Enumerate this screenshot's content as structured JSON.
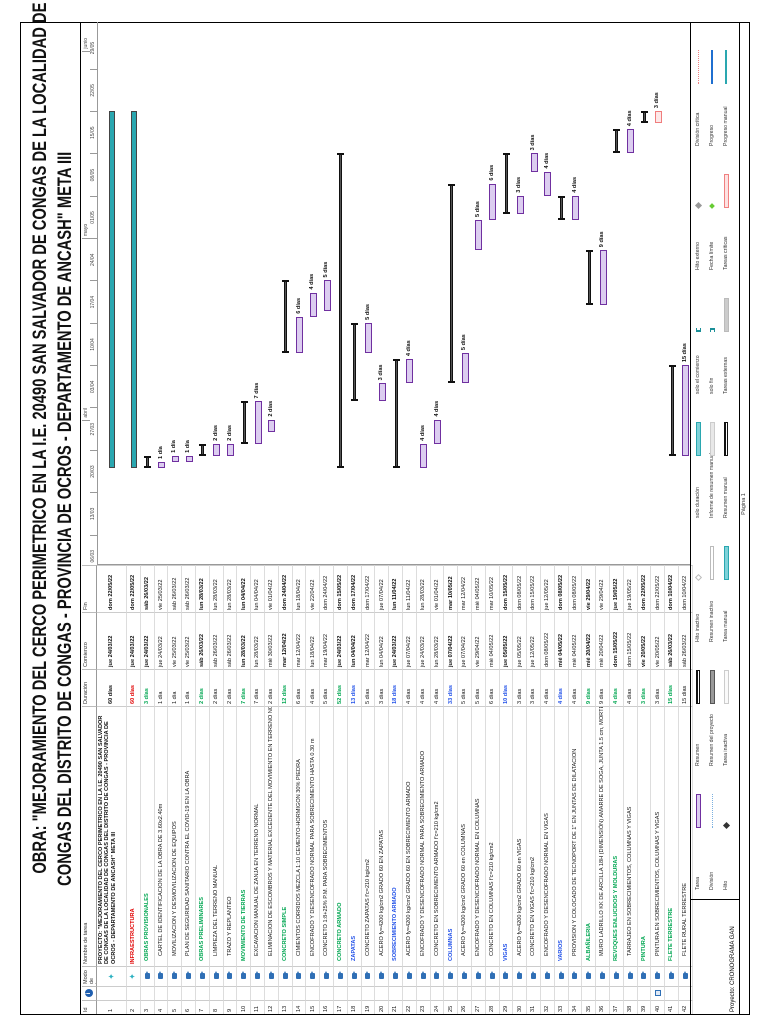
{
  "title": {
    "line1": "OBRA: \"MEJORAMIENTO DEL CERCO PERIMETRICO EN LA I.E. 20490 SAN SALVADOR DE CONGAS DE LA LOCALIDAD DE",
    "line2": "CONGAS DEL DISTRITO DE CONGAS - PROVINCIA DE OCROS - DEPARTAMENTO DE ANCASH\" META III"
  },
  "columns": {
    "id": "Id",
    "indicator": "i",
    "mode": "Modo de tarea",
    "name": "Nombre de tarea",
    "duration": "Duración",
    "start": "Comienzo",
    "end": "Fin"
  },
  "timescale": {
    "months": [
      {
        "label": "abril",
        "date": "01/04/22"
      },
      {
        "label": "mayo",
        "date": "01/05/22"
      },
      {
        "label": "junio",
        "date": "01/06/22"
      }
    ],
    "weeks": [
      "06/03",
      "13/03",
      "20/03",
      "27/03",
      "03/04",
      "10/04",
      "17/04",
      "24/04",
      "01/05",
      "08/05",
      "15/05",
      "22/05",
      "29/05"
    ]
  },
  "colors": {
    "summary_green": "#00a651",
    "summary_blue": "#1f4fe8",
    "summary_red": "#e00000",
    "task_bar": "#7030a0",
    "project_bar": "#2aa7b0"
  },
  "tasks": [
    {
      "id": "1",
      "mode": "manual",
      "kind": "project",
      "bold": true,
      "name": "PROYECTO: \"MEJORAMIENTO DEL CERCO PERIMETRICO EN LA I.E. 20490 SAN SALVADOR DE CONGAS DE LA LOCALIDAD DE CONGAS DEL DISTRITO DE CONGAS - PROVINCIA DE OCROS - DEPARTAMENTO DE ANCASH\" META III",
      "duration": "60 días",
      "start": "jue 24/03/22",
      "end": "dom 22/05/22"
    },
    {
      "id": "2",
      "mode": "manual",
      "kind": "project",
      "color": "#e00000",
      "name": "INFRAESTRUCTURA",
      "duration": "60 días",
      "start": "jue 24/03/22",
      "end": "dom 22/05/22"
    },
    {
      "id": "3",
      "mode": "auto",
      "kind": "summary",
      "color": "#00a651",
      "name": "OBRAS PROVISIONALES",
      "duration": "3 días",
      "start": "jue 24/03/22",
      "end": "sáb 26/03/22"
    },
    {
      "id": "4",
      "mode": "auto",
      "kind": "task",
      "name": "CARTEL DE IDENTIFICACION DE LA OBRA DE 3.60x2.40m",
      "duration": "1 día",
      "start": "jue 24/03/22",
      "end": "vie 25/03/22"
    },
    {
      "id": "5",
      "mode": "auto",
      "kind": "task",
      "name": "MOVILIZACION Y DESMOVILIZACION DE EQUIPOS",
      "duration": "1 día",
      "start": "vie 25/03/22",
      "end": "sáb 26/03/22"
    },
    {
      "id": "6",
      "mode": "auto",
      "kind": "task",
      "name": "PLAN DE SEGURIDAD SANITARIO CONTRA EL COVID-19 EN LA OBRA",
      "duration": "1 día",
      "start": "vie 25/03/22",
      "end": "sáb 26/03/22"
    },
    {
      "id": "7",
      "mode": "auto",
      "kind": "summary",
      "color": "#00a651",
      "name": "OBRAS PRELIMINARES",
      "duration": "2 días",
      "start": "sáb 26/03/22",
      "end": "lun 28/03/22"
    },
    {
      "id": "8",
      "mode": "auto",
      "kind": "task",
      "name": "LIMPIEZA DEL TERRENO MANUAL",
      "duration": "2 días",
      "start": "sáb 26/03/22",
      "end": "lun 28/03/22"
    },
    {
      "id": "9",
      "mode": "auto",
      "kind": "task",
      "name": "TRAZO Y REPLANTEO",
      "duration": "2 días",
      "start": "sáb 26/03/22",
      "end": "lun 28/03/22"
    },
    {
      "id": "10",
      "mode": "auto",
      "kind": "summary",
      "color": "#00a651",
      "name": "MOVIMIENTO DE TIERRAS",
      "duration": "7 días",
      "start": "lun 28/03/22",
      "end": "lun 04/04/22"
    },
    {
      "id": "11",
      "mode": "auto",
      "kind": "task",
      "name": "EXCAVACION MANUAL DE ZANJA EN TERRENO NORMAL",
      "duration": "7 días",
      "start": "lun 28/03/22",
      "end": "lun 04/04/22"
    },
    {
      "id": "12",
      "mode": "auto",
      "kind": "task",
      "name": "ELIMINACION DE ESCOMBROS Y MATERIAL EXCEDENTE DEL MOVIMIENTO EN TERRENO NORMAL",
      "duration": "2 días",
      "start": "mié 30/03/22",
      "end": "vie 01/04/22"
    },
    {
      "id": "13",
      "mode": "auto",
      "kind": "summary",
      "color": "#00a651",
      "name": "CONCRETO SIMPLE",
      "duration": "12 días",
      "start": "mar 12/04/22",
      "end": "dom 24/04/22"
    },
    {
      "id": "14",
      "mode": "auto",
      "kind": "task",
      "name": "CIMIENTOS CORRIDOS MEZCLA 1:10 CEMENTO-HORMIGON 30% PIEDRA",
      "duration": "6 días",
      "start": "mar 12/04/22",
      "end": "lun 18/04/22"
    },
    {
      "id": "15",
      "mode": "auto",
      "kind": "task",
      "name": "ENCOFRADO Y DESENCOFRADO NORMAL PARA SOBRECIMIENTO HASTA 0.30 m",
      "duration": "4 días",
      "start": "lun 18/04/22",
      "end": "vie 22/04/22"
    },
    {
      "id": "16",
      "mode": "auto",
      "kind": "task",
      "name": "CONCRETO 1:8+25% P.M. PARA SOBRECIMIENTOS",
      "duration": "5 días",
      "start": "mar 19/04/22",
      "end": "dom 24/04/22"
    },
    {
      "id": "17",
      "mode": "auto",
      "kind": "summary",
      "color": "#00a651",
      "name": "CONCRETO ARMADO",
      "duration": "52 días",
      "start": "jue 24/03/22",
      "end": "dom 15/05/22"
    },
    {
      "id": "18",
      "mode": "auto",
      "kind": "summary",
      "color": "#1f4fe8",
      "name": "ZAPATAS",
      "duration": "13 días",
      "start": "lun 04/04/22",
      "end": "dom 17/04/22"
    },
    {
      "id": "19",
      "mode": "auto",
      "kind": "task",
      "name": "CONCRETO ZAPATAS f'c=210 kg/cm2",
      "duration": "5 días",
      "start": "mar 12/04/22",
      "end": "dom 17/04/22"
    },
    {
      "id": "20",
      "mode": "auto",
      "kind": "task",
      "name": "ACERO fy=4200 kg/cm2 GRADO 60 EN ZAPATAS",
      "duration": "3 días",
      "start": "lun 04/04/22",
      "end": "jue 07/04/22"
    },
    {
      "id": "21",
      "mode": "auto",
      "kind": "summary",
      "color": "#1f4fe8",
      "name": "SOBRECIMIENTO ARMADO",
      "duration": "18 días",
      "start": "jue 24/03/22",
      "end": "lun 11/04/22"
    },
    {
      "id": "22",
      "mode": "auto",
      "kind": "task",
      "name": "ACERO fy=4200 kg/cm2 GRADO 60 EN SOBRECIMIENTO ARMADO",
      "duration": "4 días",
      "start": "jue 07/04/22",
      "end": "lun 11/04/22"
    },
    {
      "id": "23",
      "mode": "auto",
      "kind": "task",
      "name": "ENCOFRADO Y DESENCOFRADO NORMAL PARA SOBRECIMIENTO ARMADO",
      "duration": "4 días",
      "start": "jue 24/03/22",
      "end": "lun 28/03/22"
    },
    {
      "id": "24",
      "mode": "auto",
      "kind": "task",
      "name": "CONCRETO EN SOBRECIMIENTO ARMADO f'c=210 kg/cm2",
      "duration": "4 días",
      "start": "lun 28/03/22",
      "end": "vie 01/04/22"
    },
    {
      "id": "25",
      "mode": "auto",
      "kind": "summary",
      "color": "#1f4fe8",
      "name": "COLUMNAS",
      "duration": "33 días",
      "start": "jue 07/04/22",
      "end": "mar 10/05/22"
    },
    {
      "id": "26",
      "mode": "auto",
      "kind": "task",
      "name": "ACERO fy=4200 kg/cm2 GRADO 60 en COLUMNAS",
      "duration": "5 días",
      "start": "jue 07/04/22",
      "end": "mar 12/04/22"
    },
    {
      "id": "27",
      "mode": "auto",
      "kind": "task",
      "name": "ENCOFRADO Y DESENCOFRADO NORMAL EN COLUMNAS",
      "duration": "5 días",
      "start": "vie 29/04/22",
      "end": "mié 04/05/22"
    },
    {
      "id": "28",
      "mode": "auto",
      "kind": "task",
      "name": "CONCRETO EN COLUMNAS f'c=210 kg/cm2",
      "duration": "6 días",
      "start": "mié 04/05/22",
      "end": "mar 10/05/22"
    },
    {
      "id": "29",
      "mode": "auto",
      "kind": "summary",
      "color": "#1f4fe8",
      "name": "VIGAS",
      "duration": "10 días",
      "start": "jue 05/05/22",
      "end": "dom 15/05/22"
    },
    {
      "id": "30",
      "mode": "auto",
      "kind": "task",
      "name": "ACERO fy=4200 kg/cm2 GRADO 60 en VIGAS",
      "duration": "3 días",
      "start": "jue 05/05/22",
      "end": "dom 08/05/22"
    },
    {
      "id": "31",
      "mode": "auto",
      "kind": "task",
      "name": "CONCRETO EN VIGAS f'c=210 kg/cm2",
      "duration": "3 días",
      "start": "jue 12/05/22",
      "end": "dom 15/05/22"
    },
    {
      "id": "32",
      "mode": "auto",
      "kind": "task",
      "name": "ENCOFRADO Y DESENCOFRADO NORMAL EN VIGAS",
      "duration": "4 días",
      "start": "dom 08/05/22",
      "end": "jue 12/05/22"
    },
    {
      "id": "33",
      "mode": "auto",
      "kind": "summary",
      "color": "#1f4fe8",
      "name": "VARIOS",
      "duration": "4 días",
      "start": "mié 04/05/22",
      "end": "dom 08/05/22"
    },
    {
      "id": "34",
      "mode": "auto",
      "kind": "task",
      "name": "PROVISION Y COLOCADO DE TECNOPORT DE 1\" EN JUNTAS DE DILATACION",
      "duration": "4 días",
      "start": "mié 04/05/22",
      "end": "dom 08/05/22"
    },
    {
      "id": "35",
      "mode": "auto",
      "kind": "summary",
      "color": "#00a651",
      "name": "ALBAÑILERIA",
      "duration": "9 días",
      "start": "mié 20/04/22",
      "end": "vie 29/04/22"
    },
    {
      "id": "36",
      "mode": "auto",
      "kind": "task",
      "name": "MURO LADRILLO KK DE ARCILLA 18H (DIMENSIÓN) AMARRE DE SOGA, JUNTA 1.5 cm, MORTERO 1:5",
      "duration": "9 días",
      "start": "mié 20/04/22",
      "end": "vie 29/04/22"
    },
    {
      "id": "37",
      "mode": "auto",
      "kind": "summary",
      "color": "#00a651",
      "name": "REVOQUES ENLUCIDOS Y MOLDURAS",
      "duration": "4 días",
      "start": "dom 15/05/22",
      "end": "jue 19/05/22"
    },
    {
      "id": "38",
      "mode": "auto",
      "kind": "task",
      "name": "TARRAJEO EN SOBRECIMIENTOS, COLUMNAS Y VIGAS",
      "duration": "4 días",
      "start": "dom 15/05/22",
      "end": "jue 19/05/22"
    },
    {
      "id": "39",
      "mode": "auto",
      "kind": "summary",
      "color": "#00a651",
      "name": "PINTURA",
      "duration": "3 días",
      "start": "vie 20/05/22",
      "end": "dom 22/05/22"
    },
    {
      "id": "40",
      "mode": "auto",
      "kind": "manual",
      "indicator": "calendar",
      "name": "PINTURA EN SOBRECIMIENTOS, COLUMNAS Y VIGAS",
      "duration": "3 días",
      "start": "vie 20/05/22",
      "end": "dom 22/05/22"
    },
    {
      "id": "41",
      "mode": "auto",
      "kind": "summary",
      "color": "#00a651",
      "name": "FLETE TERRESTRE",
      "duration": "15 días",
      "start": "sáb 26/03/22",
      "end": "dom 10/04/22"
    },
    {
      "id": "42",
      "mode": "auto",
      "kind": "task",
      "name": "FLETE RURAL TERRESTRE",
      "duration": "15 días",
      "start": "sáb 26/03/22",
      "end": "dom 10/04/22"
    }
  ],
  "legend": {
    "project": "Proyecto: CRONOGRAMA GAN",
    "items": [
      {
        "label": "Tarea",
        "symbol": "task"
      },
      {
        "label": "División",
        "symbol": "split"
      },
      {
        "label": "Hito",
        "symbol": "milestone"
      },
      {
        "label": "Resumen",
        "symbol": "summary"
      },
      {
        "label": "Resumen del proyecto",
        "symbol": "project-summary"
      },
      {
        "label": "Tarea inactiva",
        "symbol": "inactive"
      },
      {
        "label": "Hito inactivo",
        "symbol": "inactive-milestone"
      },
      {
        "label": "Resumen inactivo",
        "symbol": "inactive-summary"
      },
      {
        "label": "Tarea manual",
        "symbol": "manual"
      },
      {
        "label": "solo duración",
        "symbol": "duration-only"
      },
      {
        "label": "Informe de resumen manual",
        "symbol": "manual-rollup"
      },
      {
        "label": "Resumen manual",
        "symbol": "manual-summary"
      },
      {
        "label": "solo el comienzo",
        "symbol": "start-only"
      },
      {
        "label": "solo fin",
        "symbol": "finish-only"
      },
      {
        "label": "Tareas externas",
        "symbol": "external"
      },
      {
        "label": "Hito externo",
        "symbol": "external-milestone"
      },
      {
        "label": "Fecha límite",
        "symbol": "deadline"
      },
      {
        "label": "Tareas críticas",
        "symbol": "critical"
      },
      {
        "label": "División crítica",
        "symbol": "critical-split"
      },
      {
        "label": "Progreso",
        "symbol": "progress"
      },
      {
        "label": "Progreso manual",
        "symbol": "manual-progress"
      }
    ]
  },
  "footer": {
    "page": "Página 1"
  }
}
